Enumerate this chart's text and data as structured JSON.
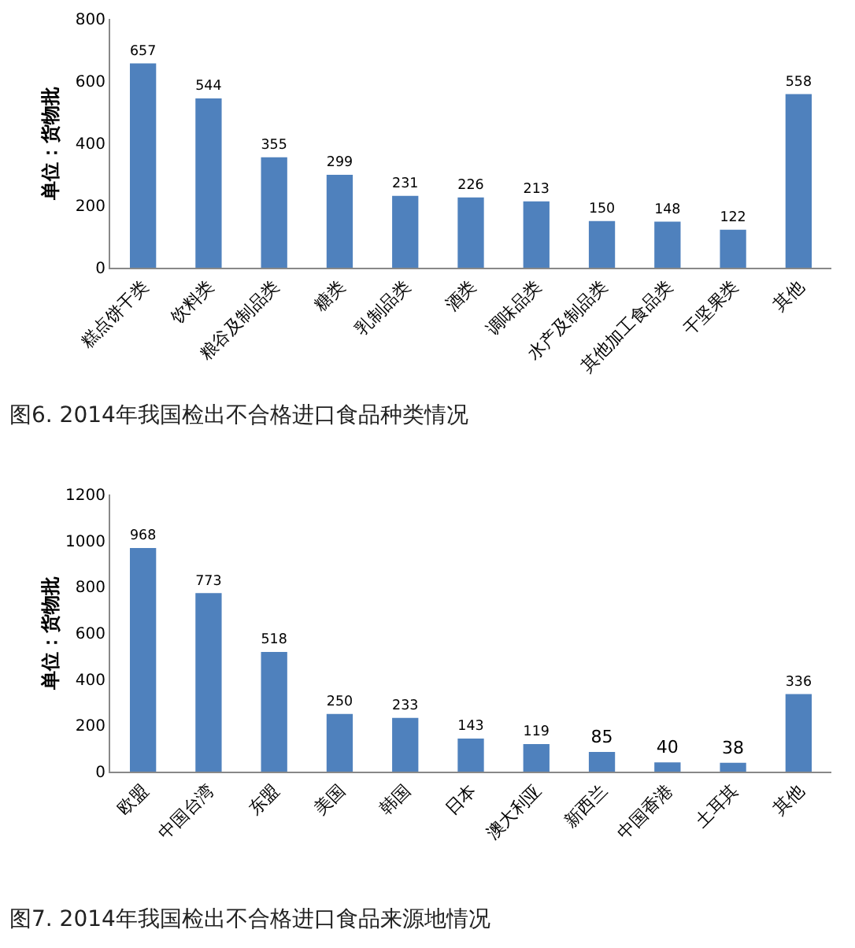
{
  "chart_data": [
    {
      "type": "bar",
      "ylabel": "单位：货物批",
      "categories": [
        "糕点饼干类",
        "饮料类",
        "粮谷及制品类",
        "糖类",
        "乳制品类",
        "酒类",
        "调味品类",
        "水产及制品类",
        "其他加工食品类",
        "干坚果类",
        "其他"
      ],
      "values": [
        657,
        544,
        355,
        299,
        231,
        226,
        213,
        150,
        148,
        122,
        558
      ],
      "color": "#4f81bd",
      "ylim": [
        0,
        800
      ],
      "yticks": [
        0,
        200,
        400,
        600,
        800
      ],
      "data_labels": true,
      "grid": false,
      "legend": false,
      "annotations": [
        "图6. 2014年我国检出不合格进口食品种类情况"
      ]
    },
    {
      "type": "bar",
      "ylabel": "单位：货物批",
      "categories": [
        "欧盟",
        "中国台湾",
        "东盟",
        "美国",
        "韩国",
        "日本",
        "澳大利亚",
        "新西兰",
        "中国香港",
        "土耳其",
        "其他"
      ],
      "values": [
        968,
        773,
        518,
        250,
        233,
        143,
        119,
        85,
        40,
        38,
        336
      ],
      "color": "#4f81bd",
      "ylim": [
        0,
        1200
      ],
      "yticks": [
        0,
        200,
        400,
        600,
        800,
        1000,
        1200
      ],
      "data_labels": true,
      "grid": false,
      "legend": false,
      "annotations": [
        "图7. 2014年我国检出不合格进口食品来源地情况"
      ]
    }
  ]
}
